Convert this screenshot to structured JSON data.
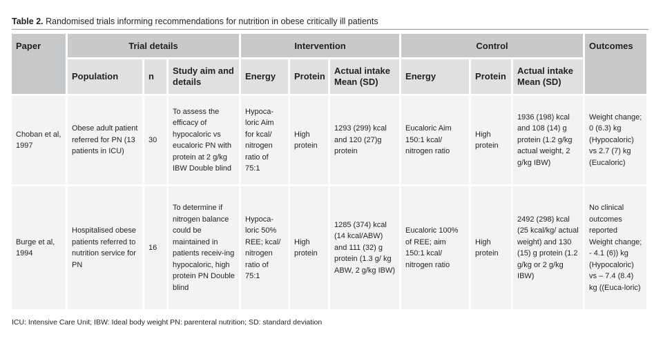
{
  "caption": {
    "label": "Table 2.",
    "text": "Randomised trials informing recommendations for nutrition in obese critically ill patients"
  },
  "header_groups": {
    "paper": "Paper",
    "trial_details": "Trial details",
    "intervention": "Intervention",
    "control": "Control",
    "outcomes": "Outcomes"
  },
  "subheaders": {
    "population": "Population",
    "n": "n",
    "aim": "Study aim and details",
    "int_energy": "Energy",
    "int_protein": "Protein",
    "int_actual": "Actual intake Mean (SD)",
    "ctl_energy": "Energy",
    "ctl_protein": "Protein",
    "ctl_actual": "Actual intake Mean (SD)"
  },
  "rows": [
    {
      "paper": "Choban et al, 1997",
      "population": "Obese adult patient referred for PN (13 patients in ICU)",
      "n": "30",
      "aim": "To assess the efficacy of hypocaloric vs eucaloric PN with protein at 2 g/kg IBW Double blind",
      "int_energy": "Hypoca-loric Aim for kcal/ nitrogen ratio of 75:1",
      "int_protein": "High protein",
      "int_actual": "1293 (299) kcal and 120 (27)g protein",
      "ctl_energy": "Eucaloric Aim 150:1 kcal/ nitrogen ratio",
      "ctl_protein": "High protein",
      "ctl_actual": "1936 (198) kcal and 108 (14) g protein (1.2 g/kg actual weight, 2 g/kg IBW)",
      "outcomes": "Weight change; 0 (6.3) kg (Hypocaloric) vs 2.7 (7) kg (Eucaloric)"
    },
    {
      "paper": "Burge et al, 1994",
      "population": "Hospitalised obese patients referred to nutrition service for PN",
      "n": "16",
      "aim": "To determine if nitrogen balance could be maintained in patients receiv-ing hypocaloric, high protein PN Double blind",
      "int_energy": "Hypoca-loric 50% REE; kcal/ nitrogen ratio of 75:1",
      "int_protein": "High protein",
      "int_actual": "1285 (374) kcal (14 kcal/ABW) and 111 (32) g protein (1.3 g/ kg ABW, 2 g/kg IBW)",
      "ctl_energy": "Eucaloric 100% of REE; aim 150:1 kcal/ nitrogen ratio",
      "ctl_protein": "High protein",
      "ctl_actual": "2492 (298) kcal (25 kcal/kg/ actual weight) and 130 (15) g protein (1.2 g/kg or 2 g/kg IBW)",
      "outcomes": "No clinical outcomes reported Weight change; - 4.1 (6)) kg (Hypocaloric) vs – 7.4 (8.4) kg ((Euca-loric)"
    }
  ],
  "footnote": "ICU: Intensive Care Unit; IBW: Ideal body weight PN: parenteral nutrition; SD: standard deviation"
}
